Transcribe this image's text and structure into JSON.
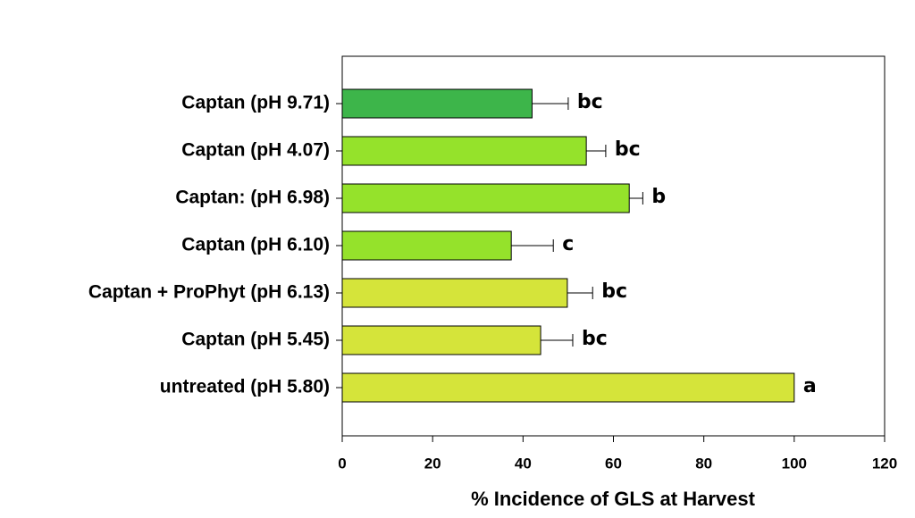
{
  "chart_data": {
    "type": "bar",
    "orientation": "horizontal",
    "x_label": "% Incidence of GLS at Harvest",
    "categories": [
      "Captan (pH 9.71)",
      "Captan (pH 4.07)",
      "Captan: (pH 6.98)",
      "Captan (pH 6.10)",
      "Captan + ProPhyt (pH 6.13)",
      "Captan (pH 5.45)",
      "untreated (pH 5.80)"
    ],
    "values": [
      42,
      54,
      63.5,
      37.4,
      49.8,
      43.9,
      100
    ],
    "errors": [
      8,
      4.3,
      3,
      9.3,
      5.6,
      7.1,
      null
    ],
    "letters": [
      "bc",
      "bc",
      "b",
      "c",
      "bc",
      "bc",
      "a"
    ],
    "colors": [
      "#3db54a",
      "#95e22b",
      "#95e22b",
      "#95e22b",
      "#d5e43a",
      "#d5e43a",
      "#d5e43a"
    ],
    "xlim": [
      0,
      120
    ],
    "xticks": [
      0,
      20,
      40,
      60,
      80,
      100,
      120
    ]
  }
}
